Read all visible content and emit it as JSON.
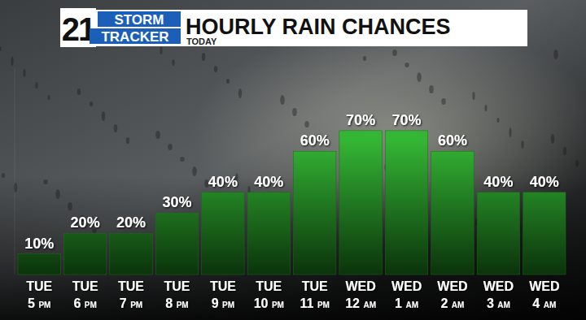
{
  "chart_data": {
    "type": "bar",
    "title": "HOURLY RAIN CHANCES",
    "subtitle": "TODAY",
    "annotations": [
      "21",
      "STORM",
      "TRACKER"
    ],
    "categories": [
      "TUE 5 PM",
      "TUE 6 PM",
      "TUE 7 PM",
      "TUE 8 PM",
      "TUE 9 PM",
      "TUE 10PM",
      "TUE 11PM",
      "WED 12AM",
      "WED 1 AM",
      "WED 2 AM",
      "WED 3 AM",
      "WED 4 AM"
    ],
    "values": [
      10,
      20,
      20,
      30,
      40,
      40,
      60,
      70,
      70,
      60,
      40,
      40
    ],
    "value_labels": [
      "10%",
      "20%",
      "20%",
      "30%",
      "40%",
      "40%",
      "60%",
      "70%",
      "70%",
      "60%",
      "40%",
      "40%"
    ],
    "color": "#34b534",
    "ylim": [
      0,
      100
    ],
    "grid": false,
    "data_labels": true,
    "tick_labels": false
  }
}
